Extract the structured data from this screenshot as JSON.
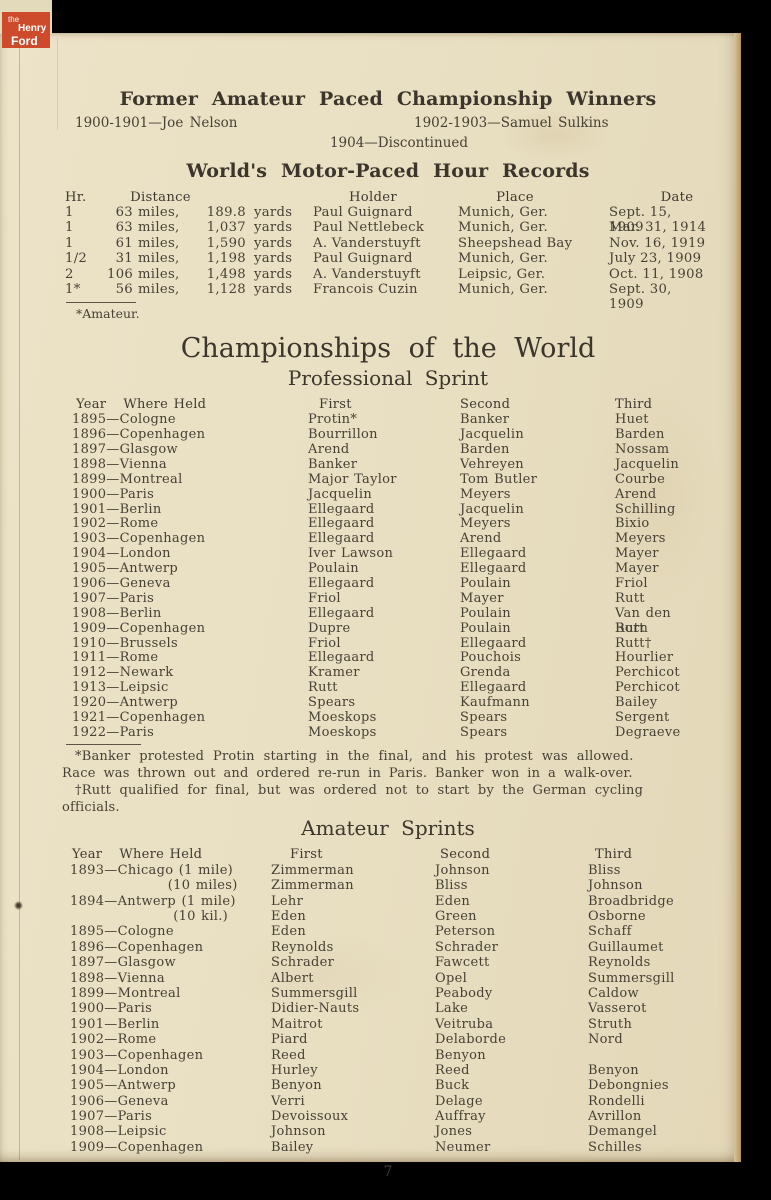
{
  "logo": {
    "the": "the",
    "henry": "Henry",
    "ford": "Ford"
  },
  "paced": {
    "title": "Former Amateur Paced Championship Winners",
    "left": "1900-1901—Joe Nelson",
    "right": "1902-1903—Samuel Sulkins",
    "center": "1904—Discontinued"
  },
  "hour_records": {
    "title": "World's Motor-Paced Hour Records",
    "headers": {
      "hr": "Hr.",
      "distance": "Distance",
      "holder": "Holder",
      "place": "Place",
      "date": "Date"
    },
    "rows": [
      {
        "hr": "1",
        "miles": "63",
        "miles_unit": "miles,",
        "yards": "189.8",
        "yards_unit": "yards",
        "holder": "Paul Guignard",
        "place": "Munich, Ger.",
        "date": "Sept. 15, 1909"
      },
      {
        "hr": "1",
        "miles": "63",
        "miles_unit": "miles,",
        "yards": "1,037",
        "yards_unit": "yards",
        "holder": "Paul Nettlebeck",
        "place": "Munich, Ger.",
        "date": "Mar. 31, 1914"
      },
      {
        "hr": "1",
        "miles": "61",
        "miles_unit": "miles,",
        "yards": "1,590",
        "yards_unit": "yards",
        "holder": "A. Vanderstuyft",
        "place": "Sheepshead Bay",
        "date": "Nov. 16, 1919"
      },
      {
        "hr": "1/2",
        "miles": "31",
        "miles_unit": "miles,",
        "yards": "1,198",
        "yards_unit": "yards",
        "holder": "Paul Guignard",
        "place": "Munich, Ger.",
        "date": "July 23, 1909"
      },
      {
        "hr": "2",
        "miles": "106",
        "miles_unit": "miles,",
        "yards": "1,498",
        "yards_unit": "yards",
        "holder": "A. Vanderstuyft",
        "place": "Leipsic, Ger.",
        "date": "Oct. 11, 1908"
      },
      {
        "hr": "1*",
        "miles": "56",
        "miles_unit": "miles,",
        "yards": "1,128",
        "yards_unit": "yards",
        "holder": "Francois Cuzin",
        "place": "Munich, Ger.",
        "date": "Sept. 30, 1909"
      }
    ],
    "footnote": "*Amateur."
  },
  "championships": {
    "title": "Championships of the World",
    "pro_subtitle": "Professional Sprint",
    "headers": {
      "year": "Year",
      "where": "Where Held",
      "first": "First",
      "second": "Second",
      "third": "Third"
    },
    "pro_rows": [
      {
        "where": "1895—Cologne",
        "first": "Protin*",
        "second": "Banker",
        "third": "Huet"
      },
      {
        "where": "1896—Copenhagen",
        "first": "Bourrillon",
        "second": "Jacquelin",
        "third": "Barden"
      },
      {
        "where": "1897—Glasgow",
        "first": "Arend",
        "second": "Barden",
        "third": "Nossam"
      },
      {
        "where": "1898—Vienna",
        "first": "Banker",
        "second": "Vehreyen",
        "third": "Jacquelin"
      },
      {
        "where": "1899—Montreal",
        "first": "Major Taylor",
        "second": "Tom Butler",
        "third": "Courbe"
      },
      {
        "where": "1900—Paris",
        "first": "Jacquelin",
        "second": "Meyers",
        "third": "Arend"
      },
      {
        "where": "1901—Berlin",
        "first": "Ellegaard",
        "second": "Jacquelin",
        "third": "Schilling"
      },
      {
        "where": "1902—Rome",
        "first": "Ellegaard",
        "second": "Meyers",
        "third": "Bixio"
      },
      {
        "where": "1903—Copenhagen",
        "first": "Ellegaard",
        "second": "Arend",
        "third": "Meyers"
      },
      {
        "where": "1904—London",
        "first": "Iver Lawson",
        "second": "Ellegaard",
        "third": "Mayer"
      },
      {
        "where": "1905—Antwerp",
        "first": "Poulain",
        "second": "Ellegaard",
        "third": "Mayer"
      },
      {
        "where": "1906—Geneva",
        "first": "Ellegaard",
        "second": "Poulain",
        "third": "Friol"
      },
      {
        "where": "1907—Paris",
        "first": "Friol",
        "second": "Mayer",
        "third": "Rutt"
      },
      {
        "where": "1908—Berlin",
        "first": "Ellegaard",
        "second": "Poulain",
        "third": "Van den Born"
      },
      {
        "where": "1909—Copenhagen",
        "first": "Dupre",
        "second": "Poulain",
        "third": "Rutt"
      },
      {
        "where": "1910—Brussels",
        "first": "Friol",
        "second": "Ellegaard",
        "third": "Rutt†"
      },
      {
        "where": "1911—Rome",
        "first": "Ellegaard",
        "second": "Pouchois",
        "third": "Hourlier"
      },
      {
        "where": "1912—Newark",
        "first": "Kramer",
        "second": "Grenda",
        "third": "Perchicot"
      },
      {
        "where": "1913—Leipsic",
        "first": "Rutt",
        "second": "Ellegaard",
        "third": "Perchicot"
      },
      {
        "where": "1920—Antwerp",
        "first": "Spears",
        "second": "Kaufmann",
        "third": "Bailey"
      },
      {
        "where": "1921—Copenhagen",
        "first": "Moeskops",
        "second": "Spears",
        "third": "Sergent"
      },
      {
        "where": "1922—Paris",
        "first": "Moeskops",
        "second": "Spears",
        "third": "Degraeve"
      }
    ],
    "footnote_lines": [
      "*Banker protested Protin starting in the final, and his protest was allowed.",
      "Race was thrown out and ordered re-run in Paris.  Banker won in a walk-over.",
      "†Rutt qualified for final, but was ordered not to start by the German cycling",
      "officials."
    ],
    "amateur_subtitle": "Amateur Sprints",
    "amateur_rows": [
      {
        "where": "1893—Chicago (1 mile)",
        "first": "Zimmerman",
        "second": "Johnson",
        "third": "Bliss"
      },
      {
        "where": "                  (10 miles)",
        "first": "Zimmerman",
        "second": "Bliss",
        "third": "Johnson"
      },
      {
        "where": "1894—Antwerp (1 mile)",
        "first": "Lehr",
        "second": "Eden",
        "third": "Broadbridge"
      },
      {
        "where": "                   (10 kil.)",
        "first": "Eden",
        "second": "Green",
        "third": "Osborne"
      },
      {
        "where": "1895—Cologne",
        "first": "Eden",
        "second": "Peterson",
        "third": "Schaff"
      },
      {
        "where": "1896—Copenhagen",
        "first": "Reynolds",
        "second": "Schrader",
        "third": "Guillaumet"
      },
      {
        "where": "1897—Glasgow",
        "first": "Schrader",
        "second": "Fawcett",
        "third": "Reynolds"
      },
      {
        "where": "1898—Vienna",
        "first": "Albert",
        "second": "Opel",
        "third": "Summersgill"
      },
      {
        "where": "1899—Montreal",
        "first": "Summersgill",
        "second": "Peabody",
        "third": "Caldow"
      },
      {
        "where": "1900—Paris",
        "first": "Didier-Nauts",
        "second": "Lake",
        "third": "Vasserot"
      },
      {
        "where": "1901—Berlin",
        "first": "Maitrot",
        "second": "Veitruba",
        "third": "Struth"
      },
      {
        "where": "1902—Rome",
        "first": "Piard",
        "second": "Delaborde",
        "third": "Nord"
      },
      {
        "where": "1903—Copenhagen",
        "first": "Reed",
        "second": "Benyon",
        "third": ""
      },
      {
        "where": "1904—London",
        "first": "Hurley",
        "second": "Reed",
        "third": "Benyon"
      },
      {
        "where": "1905—Antwerp",
        "first": "Benyon",
        "second": "Buck",
        "third": "Debongnies"
      },
      {
        "where": "1906—Geneva",
        "first": "Verri",
        "second": "Delage",
        "third": "Rondelli"
      },
      {
        "where": "1907—Paris",
        "first": "Devoissoux",
        "second": "Auffray",
        "third": "Avrillon"
      },
      {
        "where": "1908—Leipsic",
        "first": "Johnson",
        "second": "Jones",
        "third": "Demangel"
      },
      {
        "where": "1909—Copenhagen",
        "first": "Bailey",
        "second": "Neumer",
        "third": "Schilles"
      }
    ]
  },
  "page_number": "7"
}
